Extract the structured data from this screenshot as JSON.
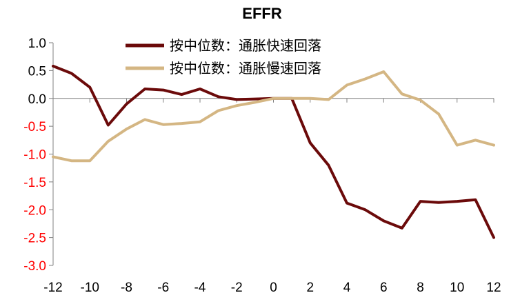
{
  "chart_data": {
    "type": "line",
    "title": "EFFR",
    "xlabel": "",
    "ylabel": "",
    "x": [
      -12,
      -11,
      -10,
      -9,
      -8,
      -7,
      -6,
      -5,
      -4,
      -3,
      -2,
      -1,
      0,
      1,
      2,
      3,
      4,
      5,
      6,
      7,
      8,
      9,
      10,
      11,
      12
    ],
    "xlim": [
      -12,
      12
    ],
    "ylim": [
      -3.0,
      1.0
    ],
    "x_ticks": [
      -12,
      -10,
      -8,
      -6,
      -4,
      -2,
      0,
      2,
      4,
      6,
      8,
      10,
      12
    ],
    "x_tick_labels": [
      "-12",
      "-10",
      "-8",
      "-6",
      "-4",
      "-2",
      "0",
      "2",
      "4",
      "6",
      "8",
      "10",
      "12"
    ],
    "y_ticks": [
      1.0,
      0.5,
      0.0,
      -0.5,
      -1.0,
      -1.5,
      -2.0,
      -2.5,
      -3.0
    ],
    "y_tick_labels": [
      "1.0",
      "0.5",
      "0.0",
      "-0.5",
      "-1.0",
      "-1.5",
      "-2.0",
      "-2.5",
      "-3.0"
    ],
    "grid": false,
    "legend_position": "top",
    "series": [
      {
        "name": "按中位数：通胀快速回落",
        "color": "#6b0a0a",
        "values": [
          0.58,
          0.45,
          0.2,
          -0.48,
          -0.1,
          0.17,
          0.15,
          0.07,
          0.17,
          0.03,
          -0.02,
          -0.01,
          0.0,
          0.0,
          -0.8,
          -1.2,
          -1.88,
          -2.0,
          -2.2,
          -2.33,
          -1.85,
          -1.87,
          -1.85,
          -1.82,
          -2.5
        ]
      },
      {
        "name": "按中位数：通胀慢速回落",
        "color": "#d4b683",
        "values": [
          -1.05,
          -1.12,
          -1.12,
          -0.77,
          -0.55,
          -0.38,
          -0.47,
          -0.45,
          -0.42,
          -0.22,
          -0.13,
          -0.07,
          0.0,
          0.0,
          0.0,
          -0.02,
          0.24,
          0.35,
          0.48,
          0.08,
          -0.03,
          -0.28,
          -0.84,
          -0.75,
          -0.84
        ]
      }
    ],
    "colors": {
      "negative_tick": "#ff0000",
      "positive_tick": "#000000",
      "axis": "#7f7f7f"
    }
  }
}
